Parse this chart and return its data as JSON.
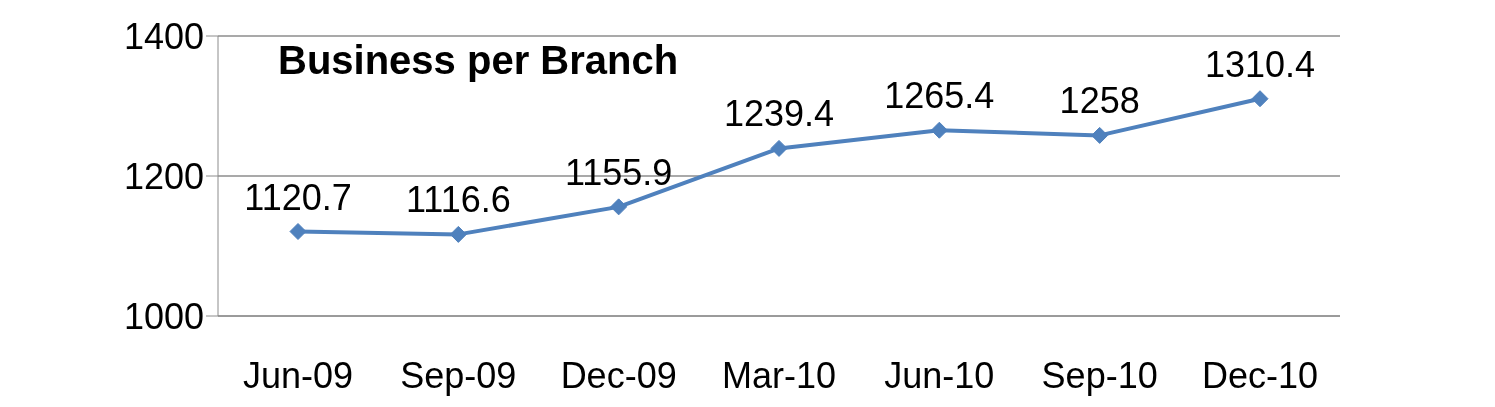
{
  "chart_data": {
    "type": "line",
    "title": "Business per Branch",
    "categories": [
      "Jun-09",
      "Sep-09",
      "Dec-09",
      "Mar-10",
      "Jun-10",
      "Sep-10",
      "Dec-10"
    ],
    "values": [
      1120.7,
      1116.6,
      1155.9,
      1239.4,
      1265.4,
      1258,
      1310.4
    ],
    "color": "#4f81bd",
    "ylim": [
      1000,
      1400
    ],
    "yticks": [
      1000,
      1200,
      1400
    ],
    "grid": "y",
    "marker": "diamond",
    "data_labels": true
  }
}
